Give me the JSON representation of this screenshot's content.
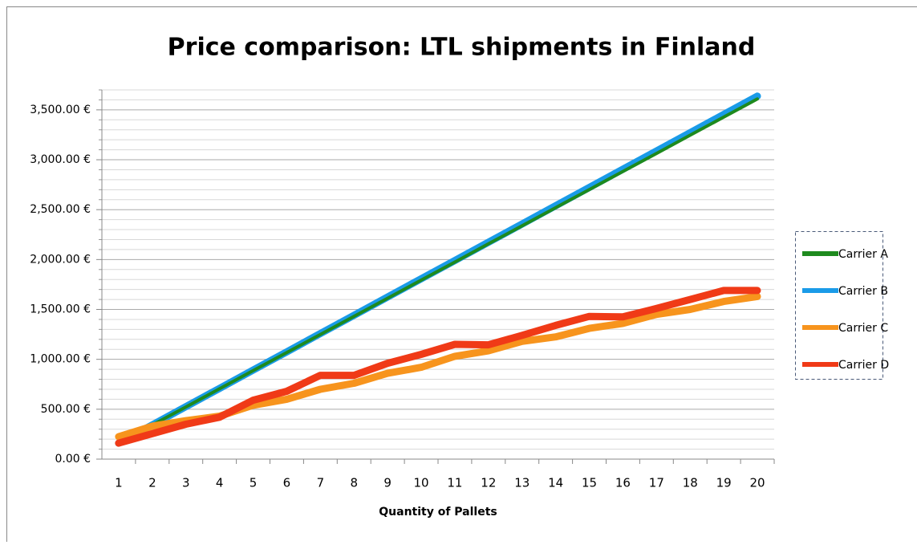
{
  "chart_data": {
    "type": "line",
    "title": "Price comparison: LTL shipments in Finland",
    "x_label": "Quantity of Pallets",
    "categories": [
      "1",
      "2",
      "3",
      "4",
      "5",
      "6",
      "7",
      "8",
      "9",
      "10",
      "11",
      "12",
      "13",
      "14",
      "15",
      "16",
      "17",
      "18",
      "19",
      "20"
    ],
    "series": [
      {
        "name": "Carrier A",
        "color": "#1e8a1e",
        "values": [
          160,
          342,
          523,
          705,
          886,
          1068,
          1249,
          1431,
          1612,
          1794,
          1975,
          2157,
          2338,
          2520,
          2701,
          2883,
          3064,
          3246,
          3427,
          3609
        ]
      },
      {
        "name": "Carrier B",
        "color": "#1a9be8",
        "values": [
          160,
          343,
          526,
          709,
          892,
          1075,
          1258,
          1441,
          1624,
          1807,
          1990,
          2173,
          2356,
          2539,
          2722,
          2905,
          3088,
          3271,
          3454,
          3637
        ]
      },
      {
        "name": "Carrier C",
        "color": "#f7941d",
        "values": [
          225,
          330,
          385,
          430,
          540,
          600,
          700,
          760,
          860,
          920,
          1030,
          1085,
          1180,
          1225,
          1310,
          1360,
          1450,
          1500,
          1580,
          1630
        ]
      },
      {
        "name": "Carrier D",
        "color": "#f03a17",
        "values": [
          160,
          255,
          350,
          420,
          590,
          680,
          840,
          840,
          960,
          1050,
          1150,
          1145,
          1240,
          1340,
          1430,
          1425,
          1510,
          1600,
          1690,
          1690
        ]
      }
    ],
    "ylim": [
      0,
      3700
    ],
    "yticks": [
      {
        "value": 0,
        "label": "0.00 €"
      },
      {
        "value": 500,
        "label": "500.00 €"
      },
      {
        "value": 1000,
        "label": "1,000.00 €"
      },
      {
        "value": 1500,
        "label": "1,500.00 €"
      },
      {
        "value": 2000,
        "label": "2,000.00 €"
      },
      {
        "value": 2500,
        "label": "2,500.00 €"
      },
      {
        "value": 3000,
        "label": "3,000.00 €"
      },
      {
        "value": 3500,
        "label": "3,500.00 €"
      }
    ],
    "minor_yticks": [
      100,
      200,
      300,
      400,
      600,
      700,
      800,
      900,
      1100,
      1200,
      1300,
      1400,
      1600,
      1700,
      1800,
      1900,
      2100,
      2200,
      2300,
      2400,
      2600,
      2700,
      2800,
      2900,
      3100,
      3200,
      3300,
      3400,
      3600,
      3700
    ],
    "grid": true,
    "legend": "right"
  }
}
